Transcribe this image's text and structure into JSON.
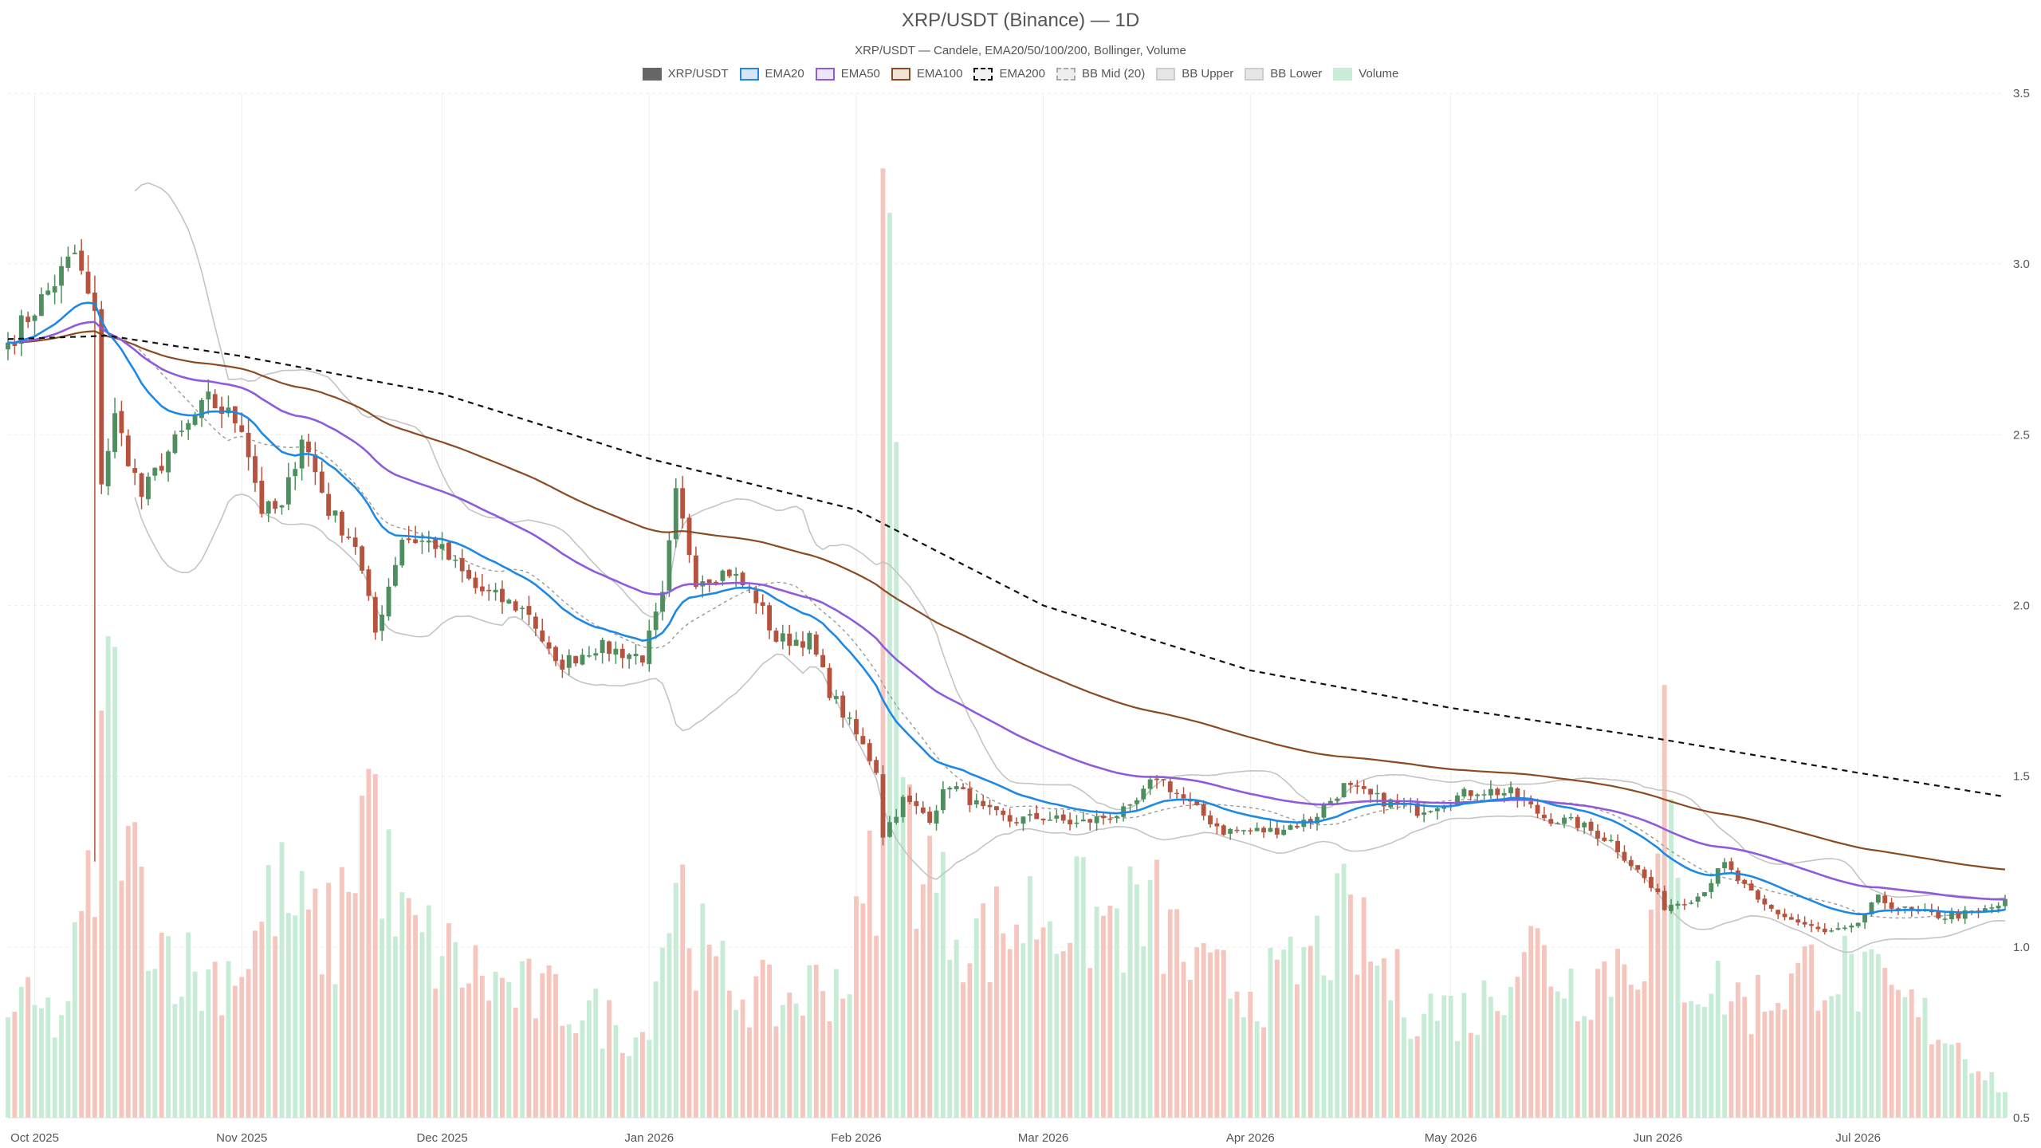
{
  "chart_data": {
    "type": "candlestick",
    "title": "XRP/USDT (Binance) — 1D",
    "subtitle": "XRP/USDT — Candele, EMA20/50/100/200, Bollinger, Volume",
    "legend": [
      {
        "key": "candles",
        "label": "XRP/USDT",
        "fill": "#666666",
        "stroke": "#666666",
        "dash": false
      },
      {
        "key": "ema20",
        "label": "EMA20",
        "fill": "#d6e6f5",
        "stroke": "#1e88e5",
        "dash": false
      },
      {
        "key": "ema50",
        "label": "EMA50",
        "fill": "#ece6fa",
        "stroke": "#8e5bdc",
        "dash": false
      },
      {
        "key": "ema100",
        "label": "EMA100",
        "fill": "#f3e3d6",
        "stroke": "#8b4a22",
        "dash": false
      },
      {
        "key": "ema200",
        "label": "EMA200",
        "fill": "#f1f1f1",
        "stroke": "#111111",
        "dash": true
      },
      {
        "key": "bbmid",
        "label": "BB Mid (20)",
        "fill": "#eeeeee",
        "stroke": "#aaaaaa",
        "dash": true
      },
      {
        "key": "bbupper",
        "label": "BB Upper",
        "fill": "#e6e6e6",
        "stroke": "#cccccc",
        "dash": false
      },
      {
        "key": "bblower",
        "label": "BB Lower",
        "fill": "#e6e6e6",
        "stroke": "#cccccc",
        "dash": false
      },
      {
        "key": "volume",
        "label": "Volume",
        "fill": "#c8ecd6",
        "stroke": "#c8ecd6",
        "dash": false
      }
    ],
    "colors": {
      "up": "#4f8f5f",
      "down": "#b5533e",
      "vol_up": "#c7ecd5",
      "vol_down": "#f5c6bd",
      "ema20": "#1e88e5",
      "ema50": "#8e5bdc",
      "ema100": "#8b4a22",
      "ema200": "#111111",
      "bbmid": "#999999",
      "bbband": "#c4c4c4",
      "grid": "#eeeeee"
    },
    "y_axis": {
      "position": "right",
      "ylim": [
        0.5,
        3.5
      ],
      "ticks": [
        "0.5",
        "1.0",
        "1.5",
        "2.0",
        "2.5",
        "3.0",
        "3.5"
      ]
    },
    "x_axis": {
      "start": "2025-09-27",
      "end": "2026-07-23",
      "ticks": [
        {
          "date": "2025-10-01",
          "label": "Oct 2025"
        },
        {
          "date": "2025-11-01",
          "label": "Nov 2025"
        },
        {
          "date": "2025-12-01",
          "label": "Dec 2025"
        },
        {
          "date": "2026-01-01",
          "label": "Jan 2026"
        },
        {
          "date": "2026-02-01",
          "label": "Feb 2026"
        },
        {
          "date": "2026-03-01",
          "label": "Mar 2026"
        },
        {
          "date": "2026-04-01",
          "label": "Apr 2026"
        },
        {
          "date": "2026-05-01",
          "label": "May 2026"
        },
        {
          "date": "2026-06-01",
          "label": "Jun 2026"
        },
        {
          "date": "2026-07-01",
          "label": "Jul 2026"
        }
      ]
    },
    "close_anchors": [
      [
        "2025-09-27",
        2.77
      ],
      [
        "2025-10-03",
        2.92
      ],
      [
        "2025-10-07",
        3.03
      ],
      [
        "2025-10-10",
        2.84
      ],
      [
        "2025-10-11",
        2.37
      ],
      [
        "2025-10-13",
        2.55
      ],
      [
        "2025-10-17",
        2.32
      ],
      [
        "2025-10-21",
        2.45
      ],
      [
        "2025-10-27",
        2.6
      ],
      [
        "2025-11-01",
        2.53
      ],
      [
        "2025-11-04",
        2.28
      ],
      [
        "2025-11-07",
        2.28
      ],
      [
        "2025-11-10",
        2.5
      ],
      [
        "2025-11-14",
        2.28
      ],
      [
        "2025-11-18",
        2.18
      ],
      [
        "2025-11-21",
        1.92
      ],
      [
        "2025-11-25",
        2.2
      ],
      [
        "2025-11-30",
        2.18
      ],
      [
        "2025-12-06",
        2.05
      ],
      [
        "2025-12-14",
        1.98
      ],
      [
        "2025-12-18",
        1.82
      ],
      [
        "2025-12-24",
        1.88
      ],
      [
        "2025-12-31",
        1.85
      ],
      [
        "2026-01-03",
        2.02
      ],
      [
        "2026-01-05",
        2.32
      ],
      [
        "2026-01-08",
        2.08
      ],
      [
        "2026-01-13",
        2.1
      ],
      [
        "2026-01-17",
        2.02
      ],
      [
        "2026-01-20",
        1.9
      ],
      [
        "2026-01-25",
        1.9
      ],
      [
        "2026-01-28",
        1.75
      ],
      [
        "2026-02-01",
        1.62
      ],
      [
        "2026-02-04",
        1.52
      ],
      [
        "2026-02-05",
        1.33
      ],
      [
        "2026-02-08",
        1.43
      ],
      [
        "2026-02-12",
        1.38
      ],
      [
        "2026-02-15",
        1.48
      ],
      [
        "2026-02-20",
        1.4
      ],
      [
        "2026-02-24",
        1.37
      ],
      [
        "2026-03-01",
        1.38
      ],
      [
        "2026-03-06",
        1.36
      ],
      [
        "2026-03-14",
        1.4
      ],
      [
        "2026-03-18",
        1.5
      ],
      [
        "2026-03-24",
        1.4
      ],
      [
        "2026-03-28",
        1.34
      ],
      [
        "2026-04-04",
        1.34
      ],
      [
        "2026-04-10",
        1.37
      ],
      [
        "2026-04-15",
        1.47
      ],
      [
        "2026-04-19",
        1.44
      ],
      [
        "2026-04-26",
        1.4
      ],
      [
        "2026-05-05",
        1.46
      ],
      [
        "2026-05-10",
        1.45
      ],
      [
        "2026-05-15",
        1.38
      ],
      [
        "2026-05-20",
        1.36
      ],
      [
        "2026-05-25",
        1.31
      ],
      [
        "2026-05-30",
        1.2
      ],
      [
        "2026-06-02",
        1.12
      ],
      [
        "2026-06-07",
        1.15
      ],
      [
        "2026-06-11",
        1.24
      ],
      [
        "2026-06-16",
        1.13
      ],
      [
        "2026-06-21",
        1.08
      ],
      [
        "2026-06-26",
        1.04
      ],
      [
        "2026-06-30",
        1.05
      ],
      [
        "2026-07-04",
        1.14
      ],
      [
        "2026-07-09",
        1.1
      ],
      [
        "2026-07-14",
        1.09
      ],
      [
        "2026-07-19",
        1.1
      ],
      [
        "2026-07-23",
        1.13
      ]
    ],
    "volume_anchors": [
      [
        "2025-09-27",
        0.85
      ],
      [
        "2025-10-05",
        0.8
      ],
      [
        "2025-10-10",
        1.25
      ],
      [
        "2025-10-12",
        1.91
      ],
      [
        "2025-10-15",
        1.3
      ],
      [
        "2025-10-20",
        1.05
      ],
      [
        "2025-10-26",
        0.92
      ],
      [
        "2025-11-02",
        1.0
      ],
      [
        "2025-11-06",
        1.2
      ],
      [
        "2025-11-10",
        1.1
      ],
      [
        "2025-11-15",
        1.05
      ],
      [
        "2025-11-20",
        1.55
      ],
      [
        "2025-11-24",
        1.1
      ],
      [
        "2025-12-01",
        1.0
      ],
      [
        "2025-12-10",
        0.9
      ],
      [
        "2025-12-20",
        0.85
      ],
      [
        "2025-12-31",
        0.75
      ],
      [
        "2026-01-05",
        1.25
      ],
      [
        "2026-01-10",
        0.95
      ],
      [
        "2026-01-20",
        0.85
      ],
      [
        "2026-01-31",
        0.95
      ],
      [
        "2026-02-04",
        1.3
      ],
      [
        "2026-02-05",
        3.28
      ],
      [
        "2026-02-06",
        3.15
      ],
      [
        "2026-02-08",
        1.45
      ],
      [
        "2026-02-14",
        1.15
      ],
      [
        "2026-02-20",
        1.05
      ],
      [
        "2026-03-01",
        1.15
      ],
      [
        "2026-03-10",
        1.1
      ],
      [
        "2026-03-18",
        1.12
      ],
      [
        "2026-03-25",
        0.92
      ],
      [
        "2026-04-05",
        0.9
      ],
      [
        "2026-04-15",
        1.1
      ],
      [
        "2026-04-25",
        0.85
      ],
      [
        "2026-05-05",
        0.82
      ],
      [
        "2026-05-12",
        1.05
      ],
      [
        "2026-05-20",
        0.9
      ],
      [
        "2026-05-31",
        1.05
      ],
      [
        "2026-06-02",
        1.55
      ],
      [
        "2026-06-05",
        0.95
      ],
      [
        "2026-06-15",
        0.85
      ],
      [
        "2026-06-26",
        0.98
      ],
      [
        "2026-07-05",
        0.88
      ],
      [
        "2026-07-15",
        0.75
      ],
      [
        "2026-07-23",
        0.58
      ]
    ],
    "ema200_anchors": [
      [
        "2025-09-27",
        2.78
      ],
      [
        "2025-10-12",
        2.79
      ],
      [
        "2025-11-01",
        2.73
      ],
      [
        "2025-12-01",
        2.62
      ],
      [
        "2026-01-01",
        2.43
      ],
      [
        "2026-02-01",
        2.28
      ],
      [
        "2026-03-01",
        2.0
      ],
      [
        "2026-04-01",
        1.81
      ],
      [
        "2026-05-01",
        1.7
      ],
      [
        "2026-06-01",
        1.61
      ],
      [
        "2026-07-01",
        1.51
      ],
      [
        "2026-07-23",
        1.44
      ]
    ]
  }
}
